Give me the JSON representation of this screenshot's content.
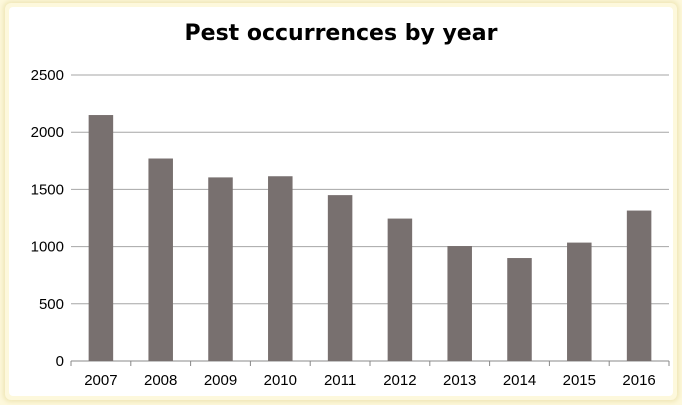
{
  "chart_data": {
    "type": "bar",
    "title": "Pest occurrences by year",
    "xlabel": "",
    "ylabel": "",
    "categories": [
      "2007",
      "2008",
      "2009",
      "2010",
      "2011",
      "2012",
      "2013",
      "2014",
      "2015",
      "2016"
    ],
    "values": [
      2150,
      1770,
      1605,
      1615,
      1450,
      1245,
      1005,
      900,
      1035,
      1315
    ],
    "ylim": [
      0,
      2500
    ],
    "yticks": [
      "0",
      "500",
      "1000",
      "1500",
      "2000",
      "2500"
    ],
    "grid": true,
    "legend": "none",
    "bar_color": "#78706f",
    "grid_color": "#a6a6a6"
  }
}
